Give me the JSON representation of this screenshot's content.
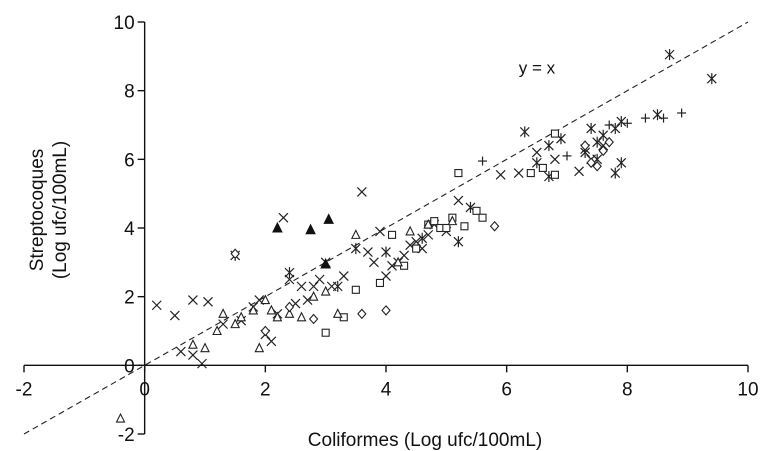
{
  "chart_data": {
    "type": "scatter",
    "title": "",
    "xlabel": "Coliformes (Log ufc/100mL)",
    "ylabel_lines": [
      "Streptocoques",
      "(Log ufc/100mL)"
    ],
    "xlim": [
      -2,
      10
    ],
    "ylim": [
      -2,
      10
    ],
    "xticks": [
      "-2",
      "0",
      "2",
      "4",
      "6",
      "8",
      "10"
    ],
    "yticks": [
      "-2",
      "0",
      "2",
      "4",
      "6",
      "8",
      "10"
    ],
    "grid": false,
    "legend": "none",
    "reference_line": {
      "label": "y = x",
      "slope": 1,
      "intercept": 0,
      "style": "dashed"
    },
    "series": [
      {
        "marker": "x",
        "points": [
          [
            0.2,
            1.75
          ],
          [
            0.5,
            1.45
          ],
          [
            0.6,
            0.4
          ],
          [
            0.8,
            1.9
          ],
          [
            0.8,
            0.3
          ],
          [
            0.95,
            0.05
          ],
          [
            1.05,
            1.85
          ],
          [
            1.3,
            1.2
          ],
          [
            1.6,
            1.3
          ],
          [
            1.8,
            1.7
          ],
          [
            1.9,
            1.9
          ],
          [
            2.0,
            0.9
          ],
          [
            2.1,
            0.7
          ],
          [
            2.2,
            1.5
          ],
          [
            2.3,
            4.3
          ],
          [
            2.4,
            2.5
          ],
          [
            2.5,
            1.8
          ],
          [
            2.6,
            2.3
          ],
          [
            2.7,
            1.9
          ],
          [
            2.8,
            2.3
          ],
          [
            2.9,
            2.5
          ],
          [
            3.0,
            3.0
          ],
          [
            3.1,
            2.3
          ],
          [
            3.3,
            2.6
          ],
          [
            3.6,
            5.05
          ],
          [
            3.7,
            3.3
          ],
          [
            3.8,
            3.0
          ],
          [
            3.9,
            3.9
          ],
          [
            4.0,
            2.6
          ],
          [
            4.1,
            2.9
          ],
          [
            4.2,
            3.0
          ],
          [
            4.3,
            3.2
          ],
          [
            4.4,
            3.5
          ],
          [
            4.5,
            3.6
          ],
          [
            4.6,
            3.4
          ],
          [
            4.7,
            3.8
          ],
          [
            4.8,
            4.1
          ],
          [
            5.0,
            3.9
          ],
          [
            5.2,
            4.8
          ],
          [
            5.9,
            5.55
          ],
          [
            6.2,
            5.6
          ],
          [
            6.5,
            6.2
          ],
          [
            6.8,
            6.0
          ],
          [
            7.2,
            5.65
          ],
          [
            7.3,
            6.3
          ],
          [
            7.4,
            6.0
          ],
          [
            7.6,
            6.4
          ]
        ]
      },
      {
        "marker": "asterisk",
        "points": [
          [
            2.4,
            2.7
          ],
          [
            3.2,
            2.3
          ],
          [
            3.5,
            3.4
          ],
          [
            4.0,
            3.3
          ],
          [
            4.6,
            3.7
          ],
          [
            5.2,
            3.6
          ],
          [
            5.4,
            4.6
          ],
          [
            6.3,
            6.8
          ],
          [
            6.5,
            5.9
          ],
          [
            6.7,
            6.4
          ],
          [
            6.7,
            5.5
          ],
          [
            6.9,
            6.6
          ],
          [
            7.3,
            6.2
          ],
          [
            7.4,
            6.9
          ],
          [
            7.5,
            6.5
          ],
          [
            7.5,
            6.0
          ],
          [
            7.6,
            6.7
          ],
          [
            7.8,
            5.6
          ],
          [
            7.8,
            6.9
          ],
          [
            7.9,
            7.1
          ],
          [
            7.9,
            5.9
          ],
          [
            8.5,
            7.3
          ],
          [
            8.7,
            9.05
          ],
          [
            9.4,
            8.35
          ],
          [
            1.5,
            3.2
          ]
        ]
      },
      {
        "marker": "square",
        "points": [
          [
            3.0,
            0.95
          ],
          [
            3.3,
            1.4
          ],
          [
            3.5,
            2.2
          ],
          [
            3.9,
            2.4
          ],
          [
            4.1,
            3.8
          ],
          [
            4.3,
            2.9
          ],
          [
            4.5,
            3.4
          ],
          [
            4.7,
            4.1
          ],
          [
            4.8,
            4.2
          ],
          [
            4.9,
            4.0
          ],
          [
            5.0,
            4.0
          ],
          [
            5.1,
            4.3
          ],
          [
            5.2,
            5.6
          ],
          [
            5.3,
            4.05
          ],
          [
            5.5,
            4.5
          ],
          [
            5.6,
            4.3
          ],
          [
            6.4,
            5.6
          ],
          [
            6.6,
            5.75
          ],
          [
            6.8,
            5.55
          ],
          [
            6.8,
            6.75
          ]
        ]
      },
      {
        "marker": "triangle",
        "points": [
          [
            -0.4,
            -1.55
          ],
          [
            0.8,
            0.6
          ],
          [
            1.0,
            0.5
          ],
          [
            1.2,
            1.0
          ],
          [
            1.3,
            1.5
          ],
          [
            1.5,
            1.2
          ],
          [
            1.6,
            1.4
          ],
          [
            1.8,
            1.6
          ],
          [
            1.9,
            0.5
          ],
          [
            2.0,
            1.9
          ],
          [
            2.1,
            1.6
          ],
          [
            2.2,
            1.4
          ],
          [
            2.4,
            1.5
          ],
          [
            2.6,
            1.4
          ],
          [
            2.8,
            2.0
          ],
          [
            3.0,
            2.15
          ],
          [
            3.2,
            1.5
          ],
          [
            3.5,
            3.8
          ],
          [
            4.2,
            3.0
          ],
          [
            4.4,
            3.9
          ],
          [
            4.7,
            4.1
          ],
          [
            5.1,
            4.2
          ]
        ]
      },
      {
        "marker": "filled-triangle",
        "points": [
          [
            2.2,
            4.0
          ],
          [
            2.75,
            3.95
          ],
          [
            3.05,
            4.25
          ],
          [
            3.0,
            2.95
          ]
        ]
      },
      {
        "marker": "diamond",
        "points": [
          [
            1.5,
            3.25
          ],
          [
            2.0,
            1.0
          ],
          [
            2.4,
            1.7
          ],
          [
            2.8,
            1.35
          ],
          [
            3.6,
            1.5
          ],
          [
            4.0,
            1.6
          ],
          [
            5.8,
            4.05
          ],
          [
            7.3,
            6.4
          ],
          [
            7.4,
            5.9
          ],
          [
            7.5,
            5.8
          ],
          [
            7.6,
            6.25
          ],
          [
            7.7,
            6.5
          ]
        ]
      },
      {
        "marker": "plus",
        "points": [
          [
            5.6,
            5.95
          ],
          [
            7.0,
            6.1
          ],
          [
            8.0,
            7.05
          ],
          [
            8.3,
            7.2
          ],
          [
            8.6,
            7.2
          ],
          [
            8.9,
            7.35
          ],
          [
            7.7,
            7.0
          ]
        ]
      }
    ]
  }
}
